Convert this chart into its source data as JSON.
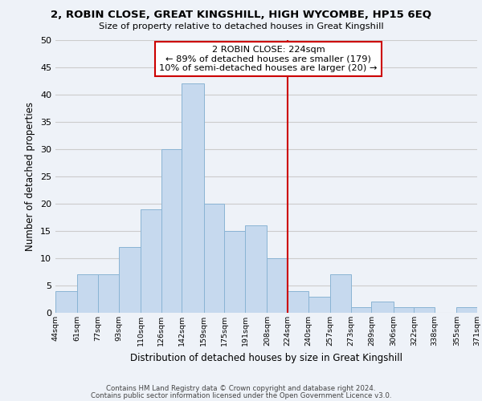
{
  "title1": "2, ROBIN CLOSE, GREAT KINGSHILL, HIGH WYCOMBE, HP15 6EQ",
  "title2": "Size of property relative to detached houses in Great Kingshill",
  "xlabel": "Distribution of detached houses by size in Great Kingshill",
  "ylabel": "Number of detached properties",
  "bin_edges": [
    44,
    61,
    77,
    93,
    110,
    126,
    142,
    159,
    175,
    191,
    208,
    224,
    240,
    257,
    273,
    289,
    306,
    322,
    338,
    355,
    371
  ],
  "counts": [
    4,
    7,
    7,
    12,
    19,
    30,
    42,
    20,
    15,
    16,
    10,
    4,
    3,
    7,
    1,
    2,
    1,
    1,
    0,
    1
  ],
  "bar_color": "#c6d9ee",
  "bar_edge_color": "#8ab4d4",
  "vline_x": 224,
  "vline_color": "#cc0000",
  "annotation_title": "2 ROBIN CLOSE: 224sqm",
  "annotation_line1": "← 89% of detached houses are smaller (179)",
  "annotation_line2": "10% of semi-detached houses are larger (20) →",
  "annotation_box_color": "#ffffff",
  "annotation_box_edge": "#cc0000",
  "tick_labels": [
    "44sqm",
    "61sqm",
    "77sqm",
    "93sqm",
    "110sqm",
    "126sqm",
    "142sqm",
    "159sqm",
    "175sqm",
    "191sqm",
    "208sqm",
    "224sqm",
    "240sqm",
    "257sqm",
    "273sqm",
    "289sqm",
    "306sqm",
    "322sqm",
    "338sqm",
    "355sqm",
    "371sqm"
  ],
  "ylim": [
    0,
    50
  ],
  "yticks": [
    0,
    5,
    10,
    15,
    20,
    25,
    30,
    35,
    40,
    45,
    50
  ],
  "footnote1": "Contains HM Land Registry data © Crown copyright and database right 2024.",
  "footnote2": "Contains public sector information licensed under the Open Government Licence v3.0.",
  "grid_color": "#cccccc",
  "background_color": "#eef2f8"
}
